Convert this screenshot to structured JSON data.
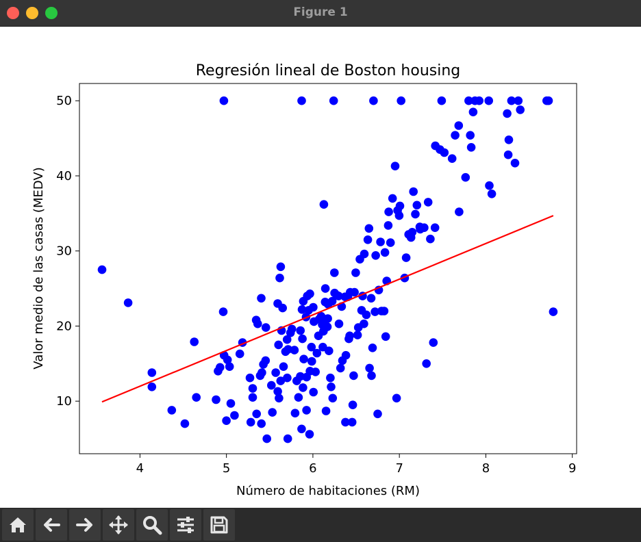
{
  "window": {
    "title": "Figure 1"
  },
  "toolbar": {
    "buttons": [
      {
        "name": "home-button",
        "icon": "home-icon"
      },
      {
        "name": "back-button",
        "icon": "arrow-left-icon"
      },
      {
        "name": "forward-button",
        "icon": "arrow-right-icon"
      },
      {
        "name": "pan-button",
        "icon": "move-icon"
      },
      {
        "name": "zoom-button",
        "icon": "magnifier-icon"
      },
      {
        "name": "configure-subplots-button",
        "icon": "sliders-icon"
      },
      {
        "name": "save-button",
        "icon": "floppy-icon"
      }
    ]
  },
  "chart_data": {
    "type": "scatter",
    "title": "Regresión lineal de Boston housing",
    "xlabel": "Número de habitaciones (RM)",
    "ylabel": "Valor medio de las casas (MEDV)",
    "xlim": [
      3.3,
      9.05
    ],
    "ylim": [
      3.0,
      52.3
    ],
    "xticks": [
      4,
      5,
      6,
      7,
      8,
      9
    ],
    "yticks": [
      10,
      20,
      30,
      40,
      50
    ],
    "grid": false,
    "legend": "none",
    "colors": {
      "points": "#0000ff",
      "line": "#ff0000"
    },
    "regression_line": {
      "x": [
        3.561,
        8.78
      ],
      "y": [
        9.9,
        34.7
      ]
    },
    "points": [
      [
        3.561,
        27.5
      ],
      [
        3.863,
        23.1
      ],
      [
        4.138,
        13.8
      ],
      [
        4.138,
        11.9
      ],
      [
        4.368,
        8.8
      ],
      [
        4.519,
        7.0
      ],
      [
        4.628,
        17.9
      ],
      [
        4.652,
        10.5
      ],
      [
        4.88,
        10.2
      ],
      [
        4.903,
        14.0
      ],
      [
        4.926,
        14.5
      ],
      [
        4.963,
        21.9
      ],
      [
        4.97,
        50.0
      ],
      [
        4.973,
        16.1
      ],
      [
        5.0,
        7.4
      ],
      [
        5.012,
        15.5
      ],
      [
        5.036,
        14.6
      ],
      [
        5.05,
        9.7
      ],
      [
        5.093,
        8.1
      ],
      [
        5.155,
        16.3
      ],
      [
        5.186,
        17.8
      ],
      [
        5.272,
        13.1
      ],
      [
        5.282,
        7.2
      ],
      [
        5.304,
        10.5
      ],
      [
        5.304,
        11.7
      ],
      [
        5.344,
        20.8
      ],
      [
        5.349,
        8.3
      ],
      [
        5.362,
        20.3
      ],
      [
        5.39,
        13.4
      ],
      [
        5.403,
        23.7
      ],
      [
        5.404,
        7.0
      ],
      [
        5.41,
        13.8
      ],
      [
        5.427,
        14.9
      ],
      [
        5.453,
        15.4
      ],
      [
        5.456,
        19.8
      ],
      [
        5.468,
        5.0
      ],
      [
        5.52,
        12.1
      ],
      [
        5.531,
        8.5
      ],
      [
        5.57,
        13.8
      ],
      [
        5.593,
        23.0
      ],
      [
        5.594,
        11.3
      ],
      [
        5.602,
        17.5
      ],
      [
        5.608,
        10.4
      ],
      [
        5.617,
        26.4
      ],
      [
        5.627,
        12.7
      ],
      [
        5.628,
        27.9
      ],
      [
        5.637,
        19.4
      ],
      [
        5.65,
        22.4
      ],
      [
        5.66,
        14.6
      ],
      [
        5.683,
        16.6
      ],
      [
        5.701,
        18.2
      ],
      [
        5.703,
        13.1
      ],
      [
        5.709,
        5.0
      ],
      [
        5.713,
        16.9
      ],
      [
        5.741,
        19.1
      ],
      [
        5.757,
        19.6
      ],
      [
        5.786,
        16.8
      ],
      [
        5.794,
        8.4
      ],
      [
        5.813,
        12.7
      ],
      [
        5.834,
        10.5
      ],
      [
        5.854,
        13.3
      ],
      [
        5.856,
        19.4
      ],
      [
        5.869,
        6.3
      ],
      [
        5.87,
        50.0
      ],
      [
        5.874,
        22.2
      ],
      [
        5.879,
        18.3
      ],
      [
        5.885,
        11.8
      ],
      [
        5.889,
        23.3
      ],
      [
        5.895,
        15.6
      ],
      [
        5.921,
        21.2
      ],
      [
        5.926,
        8.8
      ],
      [
        5.927,
        13.2
      ],
      [
        5.935,
        24.0
      ],
      [
        5.95,
        22.1
      ],
      [
        5.961,
        5.6
      ],
      [
        5.965,
        24.3
      ],
      [
        5.966,
        14.0
      ],
      [
        5.983,
        17.2
      ],
      [
        5.987,
        15.3
      ],
      [
        6.004,
        22.5
      ],
      [
        6.006,
        11.2
      ],
      [
        6.012,
        20.6
      ],
      [
        6.03,
        13.9
      ],
      [
        6.047,
        16.4
      ],
      [
        6.064,
        18.7
      ],
      [
        6.072,
        20.9
      ],
      [
        6.096,
        21.3
      ],
      [
        6.108,
        20.2
      ],
      [
        6.115,
        17.2
      ],
      [
        6.113,
        20.4
      ],
      [
        6.122,
        19.3
      ],
      [
        6.127,
        36.2
      ],
      [
        6.142,
        23.2
      ],
      [
        6.144,
        25.0
      ],
      [
        6.152,
        8.7
      ],
      [
        6.167,
        19.9
      ],
      [
        6.172,
        21.0
      ],
      [
        6.176,
        22.9
      ],
      [
        6.185,
        16.7
      ],
      [
        6.202,
        13.1
      ],
      [
        6.211,
        11.9
      ],
      [
        6.223,
        23.3
      ],
      [
        6.229,
        10.4
      ],
      [
        6.24,
        50.0
      ],
      [
        6.249,
        27.1
      ],
      [
        6.251,
        24.4
      ],
      [
        6.279,
        24.1
      ],
      [
        6.297,
        24.0
      ],
      [
        6.302,
        20.3
      ],
      [
        6.319,
        14.4
      ],
      [
        6.333,
        22.6
      ],
      [
        6.341,
        15.4
      ],
      [
        6.372,
        23.9
      ],
      [
        6.376,
        7.2
      ],
      [
        6.382,
        16.1
      ],
      [
        6.405,
        23.9
      ],
      [
        6.416,
        18.3
      ],
      [
        6.425,
        18.7
      ],
      [
        6.431,
        24.5
      ],
      [
        6.454,
        7.2
      ],
      [
        6.461,
        9.5
      ],
      [
        6.471,
        13.4
      ],
      [
        6.481,
        24.5
      ],
      [
        6.495,
        27.1
      ],
      [
        6.516,
        18.8
      ],
      [
        6.525,
        19.8
      ],
      [
        6.543,
        28.9
      ],
      [
        6.563,
        22.1
      ],
      [
        6.575,
        24.0
      ],
      [
        6.59,
        20.3
      ],
      [
        6.595,
        29.6
      ],
      [
        6.618,
        21.5
      ],
      [
        6.635,
        31.5
      ],
      [
        6.649,
        33.0
      ],
      [
        6.655,
        14.4
      ],
      [
        6.674,
        23.7
      ],
      [
        6.678,
        13.4
      ],
      [
        6.69,
        17.1
      ],
      [
        6.701,
        50.0
      ],
      [
        6.718,
        21.9
      ],
      [
        6.726,
        29.4
      ],
      [
        6.749,
        8.3
      ],
      [
        6.762,
        24.8
      ],
      [
        6.782,
        31.2
      ],
      [
        6.794,
        22.0
      ],
      [
        6.824,
        22.0
      ],
      [
        6.833,
        29.8
      ],
      [
        6.842,
        18.6
      ],
      [
        6.854,
        26.0
      ],
      [
        6.871,
        33.4
      ],
      [
        6.877,
        35.2
      ],
      [
        6.897,
        31.1
      ],
      [
        6.921,
        37.0
      ],
      [
        6.951,
        41.3
      ],
      [
        6.968,
        10.4
      ],
      [
        6.98,
        35.4
      ],
      [
        6.998,
        34.7
      ],
      [
        7.007,
        36.0
      ],
      [
        7.02,
        50.0
      ],
      [
        7.061,
        26.4
      ],
      [
        7.079,
        29.1
      ],
      [
        7.107,
        32.2
      ],
      [
        7.135,
        31.8
      ],
      [
        7.148,
        32.5
      ],
      [
        7.163,
        37.9
      ],
      [
        7.185,
        34.9
      ],
      [
        7.203,
        36.1
      ],
      [
        7.236,
        33.2
      ],
      [
        7.241,
        32.9
      ],
      [
        7.287,
        33.1
      ],
      [
        7.313,
        15.0
      ],
      [
        7.333,
        36.5
      ],
      [
        7.358,
        31.6
      ],
      [
        7.393,
        17.8
      ],
      [
        7.412,
        33.1
      ],
      [
        7.416,
        44.0
      ],
      [
        7.47,
        43.5
      ],
      [
        7.489,
        50.0
      ],
      [
        7.52,
        43.1
      ],
      [
        7.61,
        42.3
      ],
      [
        7.645,
        45.4
      ],
      [
        7.686,
        46.7
      ],
      [
        7.691,
        35.2
      ],
      [
        7.765,
        39.8
      ],
      [
        7.802,
        50.0
      ],
      [
        7.82,
        45.4
      ],
      [
        7.831,
        43.8
      ],
      [
        7.853,
        48.5
      ],
      [
        7.875,
        50.0
      ],
      [
        7.923,
        50.0
      ],
      [
        8.034,
        50.0
      ],
      [
        8.04,
        38.7
      ],
      [
        8.069,
        37.6
      ],
      [
        8.247,
        48.3
      ],
      [
        8.259,
        42.8
      ],
      [
        8.266,
        44.8
      ],
      [
        8.297,
        50.0
      ],
      [
        8.337,
        41.7
      ],
      [
        8.375,
        50.0
      ],
      [
        8.398,
        48.8
      ],
      [
        8.704,
        50.0
      ],
      [
        8.725,
        50.0
      ],
      [
        8.78,
        21.9
      ]
    ]
  }
}
